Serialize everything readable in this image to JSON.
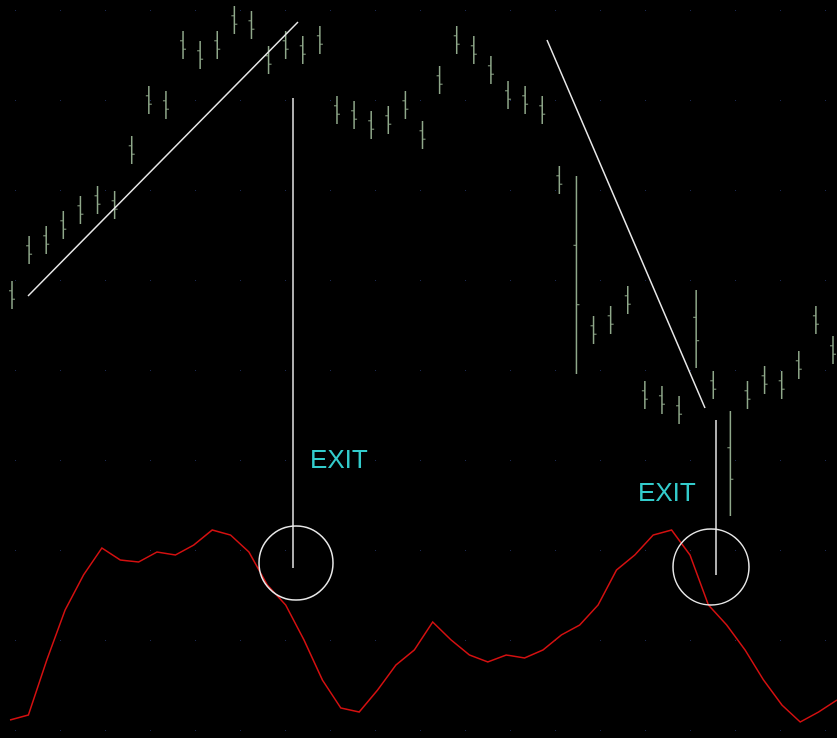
{
  "chart_data": {
    "type": "ohlc",
    "color": "#8fa88a",
    "ylim": [
      0,
      738
    ],
    "high": [
      457,
      502,
      512,
      527,
      542,
      552,
      547,
      602,
      652,
      647,
      707,
      697,
      707,
      732,
      727,
      692,
      707,
      702,
      712,
      642,
      637,
      627,
      632,
      647,
      617,
      672,
      712,
      702,
      682,
      657,
      652,
      642,
      572,
      562,
      422,
      432,
      452,
      357,
      352,
      342,
      448,
      367,
      327,
      357,
      372,
      367,
      387,
      432,
      402
    ],
    "low": [
      429,
      474,
      484,
      499,
      514,
      524,
      519,
      574,
      624,
      619,
      679,
      669,
      679,
      704,
      699,
      664,
      679,
      674,
      684,
      614,
      609,
      599,
      604,
      619,
      589,
      644,
      684,
      674,
      654,
      629,
      624,
      614,
      544,
      364,
      394,
      404,
      424,
      329,
      324,
      314,
      370,
      339,
      222,
      329,
      344,
      339,
      359,
      404,
      374
    ],
    "indicator": {
      "type": "line",
      "color": "#d41010",
      "values": [
        18,
        23,
        78,
        128,
        163,
        190,
        178,
        176,
        186,
        183,
        193,
        208,
        203,
        186,
        153,
        133,
        98,
        58,
        30,
        26,
        48,
        73,
        88,
        116,
        98,
        83,
        76,
        83,
        80,
        88,
        103,
        113,
        133,
        168,
        183,
        203,
        208,
        183,
        133,
        113,
        88,
        58,
        33,
        16,
        26,
        38
      ]
    },
    "annotations": [
      "EXIT",
      "EXIT"
    ]
  }
}
